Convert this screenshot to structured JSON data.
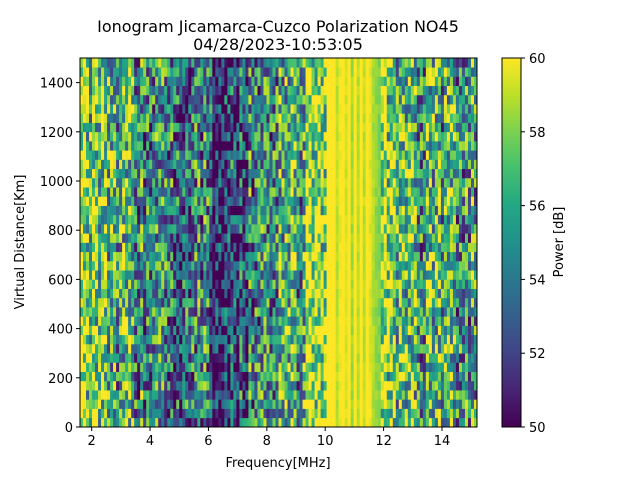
{
  "chart_data": {
    "type": "heatmap",
    "title": "Ionogram Jicamarca-Cuzco Polarization NO45",
    "subtitle": "04/28/2023-10:53:05",
    "xlabel": "Frequency[MHz]",
    "ylabel": "Virtual Distance[Km]",
    "xlim": [
      1.6,
      15.2
    ],
    "ylim": [
      0,
      1500
    ],
    "x_ticks": [
      2,
      4,
      6,
      8,
      10,
      12,
      14
    ],
    "x_tick_labels": [
      "2",
      "4",
      "6",
      "8",
      "10",
      "12",
      "14"
    ],
    "y_ticks": [
      0,
      200,
      400,
      600,
      800,
      1000,
      1200,
      1400
    ],
    "y_tick_labels": [
      "0",
      "200",
      "400",
      "600",
      "800",
      "1000",
      "1200",
      "1400"
    ],
    "colorbar": {
      "label": "Power [dB]",
      "range": [
        50,
        60
      ],
      "ticks": [
        50,
        52,
        54,
        56,
        58,
        60
      ],
      "tick_labels": [
        "50",
        "52",
        "54",
        "56",
        "58",
        "60"
      ],
      "colormap": "viridis"
    },
    "grid": false,
    "frequency_profile": {
      "frequency_mhz": [
        1.6,
        2.0,
        2.5,
        3.0,
        3.5,
        4.0,
        4.5,
        5.0,
        5.5,
        6.0,
        6.2,
        6.5,
        7.0,
        7.5,
        8.0,
        8.5,
        8.9,
        9.1,
        9.3,
        9.6,
        9.9,
        10.1,
        10.5,
        11.0,
        11.5,
        11.9,
        12.3,
        12.8,
        13.3,
        13.8,
        14.2,
        14.7,
        15.2
      ],
      "mean_power_db": [
        58.5,
        58.0,
        57.0,
        55.0,
        56.0,
        54.0,
        55.0,
        53.0,
        53.5,
        54.0,
        51.0,
        51.5,
        52.0,
        54.5,
        55.0,
        56.0,
        57.0,
        55.0,
        58.0,
        59.0,
        58.5,
        60.0,
        60.0,
        60.0,
        59.8,
        59.5,
        58.0,
        57.0,
        56.0,
        56.5,
        55.5,
        55.5,
        56.0
      ]
    }
  }
}
